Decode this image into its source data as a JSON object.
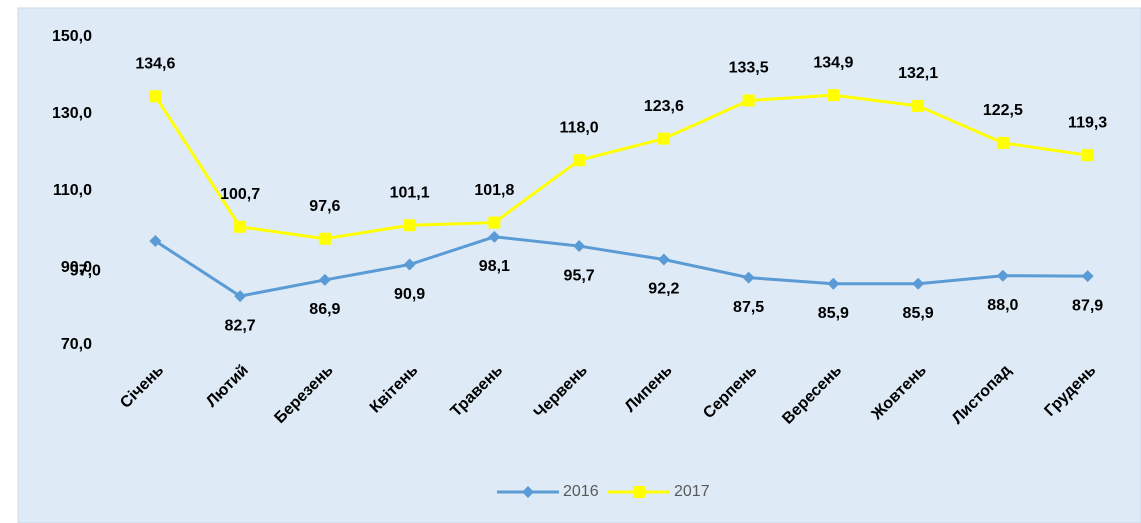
{
  "chart_data": {
    "type": "line",
    "categories": [
      "Січень",
      "Лютий",
      "Березень",
      "Квітень",
      "Травень",
      "Червень",
      "Липень",
      "Серпень",
      "Вересень",
      "Жовтень",
      "Листопад",
      "Грудень"
    ],
    "series": [
      {
        "name": "2016",
        "color": "#5b9bd5",
        "marker": "diamond",
        "values": [
          97.0,
          82.7,
          86.9,
          90.9,
          98.1,
          95.7,
          92.2,
          87.5,
          85.9,
          85.9,
          88.0,
          87.9
        ],
        "value_labels": [
          "97,0",
          "82,7",
          "86,9",
          "90,9",
          "98,1",
          "95,7",
          "92,2",
          "87,5",
          "85,9",
          "85,9",
          "88,0",
          "87,9"
        ]
      },
      {
        "name": "2017",
        "color": "#ffff00",
        "marker": "square",
        "values": [
          134.6,
          100.7,
          97.6,
          101.1,
          101.8,
          118.0,
          123.6,
          133.5,
          134.9,
          132.1,
          122.5,
          119.3
        ],
        "value_labels": [
          "134,6",
          "100,7",
          "97,6",
          "101,1",
          "101,8",
          "118,0",
          "123,6",
          "133,5",
          "134,9",
          "132,1",
          "122,5",
          "119,3"
        ]
      }
    ],
    "ylim": [
      70,
      150
    ],
    "yticks": [
      {
        "value": 70,
        "label": "70,0"
      },
      {
        "value": 90,
        "label": "90,0"
      },
      {
        "value": 110,
        "label": "110,0"
      },
      {
        "value": 130,
        "label": "130,0"
      },
      {
        "value": 150,
        "label": "150,0"
      }
    ],
    "grid": false,
    "legend": "bottom"
  }
}
